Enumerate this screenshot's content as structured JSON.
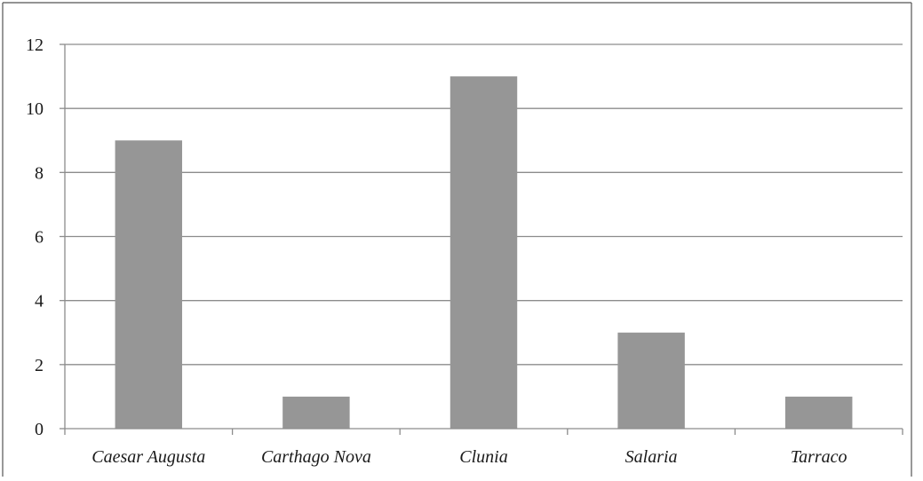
{
  "chart_data": {
    "type": "bar",
    "title": "",
    "xlabel": "",
    "ylabel": "",
    "categories": [
      "Caesar Augusta",
      "Carthago Nova",
      "Clunia",
      "Salaria",
      "Tarraco"
    ],
    "values": [
      9,
      1,
      11,
      3,
      1
    ],
    "ylim": [
      0,
      12
    ],
    "yticks": [
      0,
      2,
      4,
      6,
      8,
      10,
      12
    ],
    "grid": true,
    "legend": "none",
    "colors": {
      "bar": "#969696",
      "grid": "#8c8c8c",
      "axis": "#8c8c8c",
      "frame": "#555555"
    }
  }
}
